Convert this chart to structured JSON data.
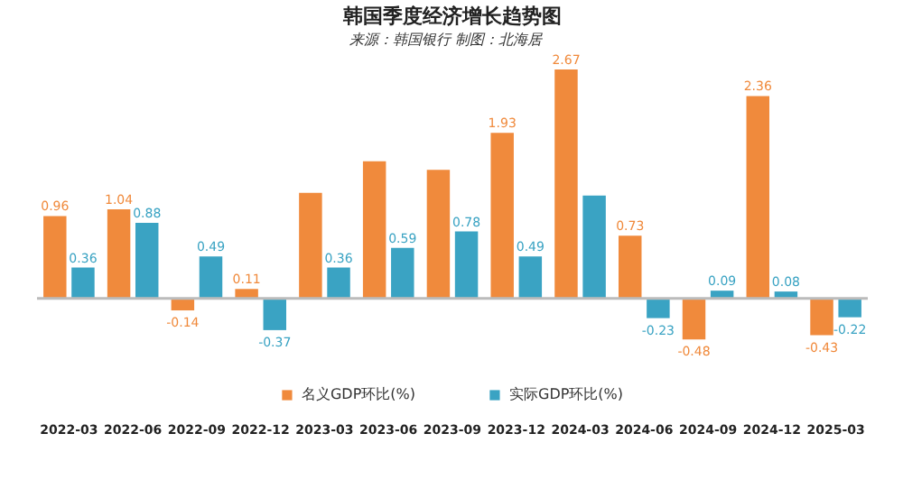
{
  "chart_data": {
    "type": "bar",
    "title": "韩国季度经济增长趋势图",
    "subtitle": "来源：韩国银行    制图：北海居",
    "categories": [
      "2022-03",
      "2022-06",
      "2022-09",
      "2022-12",
      "2023-03",
      "2023-06",
      "2023-09",
      "2023-12",
      "2024-03",
      "2024-06",
      "2024-09",
      "2024-12",
      "2025-03"
    ],
    "series": [
      {
        "name": "名义GDP环比(%)",
        "color": "#f08a3c",
        "values": [
          0.96,
          1.04,
          -0.14,
          0.11,
          1.23,
          1.6,
          1.5,
          1.93,
          2.67,
          0.73,
          -0.48,
          2.36,
          -0.43
        ],
        "value_labels": [
          "0.96",
          "1.04",
          "-0.14",
          "0.11",
          null,
          null,
          null,
          "1.93",
          "2.67",
          "0.73",
          "-0.48",
          "2.36",
          "-0.43"
        ]
      },
      {
        "name": "实际GDP环比(%)",
        "color": "#3aa3c3",
        "values": [
          0.36,
          0.88,
          0.49,
          -0.37,
          0.36,
          0.59,
          0.78,
          0.49,
          1.2,
          -0.23,
          0.09,
          0.08,
          -0.22
        ],
        "value_labels": [
          "0.36",
          "0.88",
          "0.49",
          "-0.37",
          "0.36",
          "0.59",
          "0.78",
          "0.49",
          null,
          "-0.23",
          "0.09",
          "0.08",
          "-0.22"
        ]
      }
    ],
    "tick_labels": "x",
    "grid": false,
    "legend": "bottom"
  }
}
